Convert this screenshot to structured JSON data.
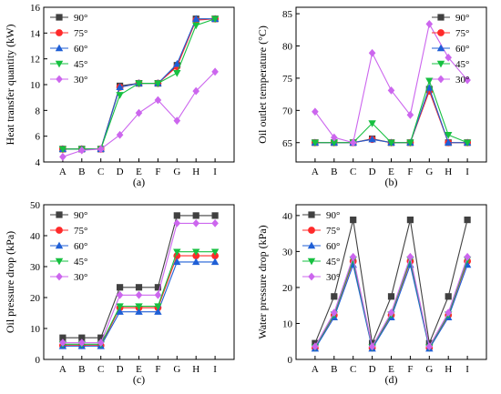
{
  "chart_data": [
    {
      "type": "line",
      "caption": "(a)",
      "categories": [
        "A",
        "B",
        "C",
        "D",
        "E",
        "F",
        "G",
        "H",
        "I"
      ],
      "xlabel": "",
      "ylabel": "Heat transfer quantity (kW)",
      "ylim": [
        4,
        16
      ],
      "yticks": [
        4,
        6,
        8,
        10,
        12,
        14,
        16
      ],
      "legend": "top-left",
      "series": [
        {
          "name": "90°",
          "color": "#404040",
          "marker": "square",
          "values": [
            5.0,
            5.0,
            5.0,
            9.9,
            10.1,
            10.1,
            11.5,
            15.1,
            15.1
          ]
        },
        {
          "name": "75°",
          "color": "#ff2a2a",
          "marker": "circle",
          "values": [
            5.0,
            5.0,
            5.0,
            9.8,
            10.1,
            10.1,
            11.4,
            15.0,
            15.1
          ]
        },
        {
          "name": "60°",
          "color": "#1f5fd6",
          "marker": "triangle-up",
          "values": [
            5.0,
            5.0,
            5.0,
            9.8,
            10.1,
            10.1,
            11.6,
            15.1,
            15.1
          ]
        },
        {
          "name": "45°",
          "color": "#16c040",
          "marker": "triangle-down",
          "values": [
            5.0,
            5.0,
            5.0,
            9.2,
            10.1,
            10.1,
            10.9,
            14.6,
            15.1
          ]
        },
        {
          "name": "30°",
          "color": "#cc66ee",
          "marker": "diamond",
          "values": [
            4.4,
            4.9,
            5.0,
            6.1,
            7.8,
            8.8,
            7.2,
            9.5,
            11.0
          ]
        }
      ]
    },
    {
      "type": "line",
      "caption": "(b)",
      "categories": [
        "A",
        "B",
        "C",
        "D",
        "E",
        "F",
        "G",
        "H",
        "I"
      ],
      "xlabel": "",
      "ylabel": "Oil outlet temperature (°C)",
      "ylim": [
        62,
        86
      ],
      "yticks": [
        65,
        70,
        75,
        80,
        85
      ],
      "legend": "top-right",
      "series": [
        {
          "name": "90°",
          "color": "#404040",
          "marker": "square",
          "values": [
            65.0,
            65.0,
            65.0,
            65.6,
            65.0,
            65.0,
            73.3,
            65.0,
            65.0
          ]
        },
        {
          "name": "75°",
          "color": "#ff2a2a",
          "marker": "circle",
          "values": [
            65.0,
            65.0,
            65.0,
            65.5,
            65.0,
            65.0,
            73.0,
            65.0,
            65.0
          ]
        },
        {
          "name": "60°",
          "color": "#1f5fd6",
          "marker": "triangle-up",
          "values": [
            65.0,
            65.0,
            65.0,
            65.5,
            65.0,
            65.0,
            73.5,
            65.0,
            65.0
          ]
        },
        {
          "name": "45°",
          "color": "#16c040",
          "marker": "triangle-down",
          "values": [
            65.0,
            65.0,
            65.0,
            68.0,
            65.0,
            65.0,
            74.6,
            66.2,
            65.0
          ]
        },
        {
          "name": "30°",
          "color": "#cc66ee",
          "marker": "diamond",
          "values": [
            69.8,
            65.8,
            65.0,
            78.9,
            73.1,
            69.3,
            83.4,
            78.2,
            74.7
          ]
        }
      ]
    },
    {
      "type": "line",
      "caption": "(c)",
      "categories": [
        "A",
        "B",
        "C",
        "D",
        "E",
        "F",
        "G",
        "H",
        "I"
      ],
      "xlabel": "",
      "ylabel": "Oil pressure drop (kPa)",
      "ylim": [
        0,
        50
      ],
      "yticks": [
        0,
        10,
        20,
        30,
        40,
        50
      ],
      "legend": "top-left",
      "series": [
        {
          "name": "90°",
          "color": "#404040",
          "marker": "square",
          "values": [
            7.0,
            7.0,
            7.0,
            23.3,
            23.3,
            23.3,
            46.5,
            46.5,
            46.5
          ]
        },
        {
          "name": "75°",
          "color": "#ff2a2a",
          "marker": "circle",
          "values": [
            4.5,
            4.5,
            4.5,
            16.7,
            16.7,
            16.7,
            33.5,
            33.5,
            33.5
          ]
        },
        {
          "name": "60°",
          "color": "#1f5fd6",
          "marker": "triangle-up",
          "values": [
            4.3,
            4.3,
            4.3,
            15.4,
            15.4,
            15.4,
            31.5,
            31.5,
            31.5
          ]
        },
        {
          "name": "45°",
          "color": "#16c040",
          "marker": "triangle-down",
          "values": [
            4.9,
            4.9,
            4.9,
            17.2,
            17.2,
            17.2,
            34.8,
            34.8,
            34.8
          ]
        },
        {
          "name": "30°",
          "color": "#cc66ee",
          "marker": "diamond",
          "values": [
            5.4,
            5.4,
            5.4,
            20.8,
            20.8,
            20.8,
            44.0,
            44.0,
            44.0
          ]
        }
      ]
    },
    {
      "type": "line",
      "caption": "(d)",
      "categories": [
        "A",
        "B",
        "C",
        "D",
        "E",
        "F",
        "G",
        "H",
        "I"
      ],
      "xlabel": "",
      "ylabel": "Water pressure drop (kPa)",
      "ylim": [
        0,
        43
      ],
      "yticks": [
        0,
        10,
        20,
        30,
        40
      ],
      "legend": "top-left",
      "series": [
        {
          "name": "90°",
          "color": "#404040",
          "marker": "square",
          "values": [
            4.5,
            17.5,
            38.8,
            4.5,
            17.5,
            38.8,
            4.5,
            17.5,
            38.8
          ]
        },
        {
          "name": "75°",
          "color": "#ff2a2a",
          "marker": "circle",
          "values": [
            3.2,
            12.3,
            27.3,
            3.2,
            12.3,
            27.3,
            3.2,
            12.3,
            27.3
          ]
        },
        {
          "name": "60°",
          "color": "#1f5fd6",
          "marker": "triangle-up",
          "values": [
            3.0,
            11.7,
            26.3,
            3.0,
            11.7,
            26.3,
            3.0,
            11.7,
            26.3
          ]
        },
        {
          "name": "45°",
          "color": "#16c040",
          "marker": "triangle-down",
          "values": [
            3.4,
            12.5,
            27.8,
            3.4,
            12.5,
            27.8,
            3.4,
            12.5,
            27.8
          ]
        },
        {
          "name": "30°",
          "color": "#cc66ee",
          "marker": "diamond",
          "values": [
            3.6,
            13.0,
            28.5,
            3.6,
            13.0,
            28.5,
            3.6,
            13.0,
            28.5
          ]
        }
      ]
    }
  ]
}
